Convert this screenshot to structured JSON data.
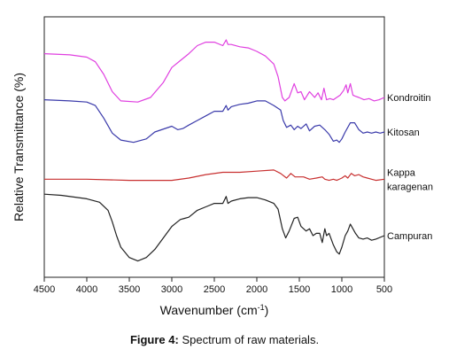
{
  "chart_data": {
    "type": "line",
    "xlabel": "Wavenumber (cm",
    "xlabel_sup": "-1",
    "xlabel_end": ")",
    "ylabel": "Relative Transmittance (%)",
    "xlim": [
      4500,
      500
    ],
    "x_reversed": true,
    "ylim": [
      0,
      100
    ],
    "y_ticks_shown": false,
    "grid": false,
    "x_ticks": [
      4500,
      4000,
      3500,
      3000,
      2500,
      2000,
      1500,
      1000,
      500
    ],
    "x_tick_labels": [
      "4500",
      "4000",
      "3500",
      "3000",
      "2500",
      "2000",
      "1500",
      "1000",
      "500"
    ],
    "series": [
      {
        "name": "Kondroitin",
        "label_lines": [
          "Kondroitin"
        ],
        "color": "#e040e0",
        "points": [
          [
            4500,
            89
          ],
          [
            4200,
            88.5
          ],
          [
            4000,
            87.5
          ],
          [
            3900,
            85.5
          ],
          [
            3800,
            80
          ],
          [
            3700,
            72.5
          ],
          [
            3600,
            68.5
          ],
          [
            3400,
            68
          ],
          [
            3250,
            70
          ],
          [
            3100,
            76.5
          ],
          [
            3000,
            83
          ],
          [
            2900,
            86
          ],
          [
            2800,
            89
          ],
          [
            2700,
            92.5
          ],
          [
            2600,
            94
          ],
          [
            2500,
            94
          ],
          [
            2400,
            92.5
          ],
          [
            2360,
            95
          ],
          [
            2340,
            93
          ],
          [
            2300,
            93
          ],
          [
            2200,
            92
          ],
          [
            2100,
            91.5
          ],
          [
            2000,
            90
          ],
          [
            1900,
            88
          ],
          [
            1800,
            84.5
          ],
          [
            1750,
            79
          ],
          [
            1700,
            70
          ],
          [
            1670,
            68.5
          ],
          [
            1620,
            70
          ],
          [
            1560,
            76
          ],
          [
            1520,
            72
          ],
          [
            1480,
            72.5
          ],
          [
            1440,
            69
          ],
          [
            1380,
            72.5
          ],
          [
            1320,
            70
          ],
          [
            1280,
            72
          ],
          [
            1240,
            69
          ],
          [
            1210,
            74
          ],
          [
            1180,
            69
          ],
          [
            1140,
            69.5
          ],
          [
            1100,
            69
          ],
          [
            1060,
            70
          ],
          [
            1020,
            71
          ],
          [
            980,
            73
          ],
          [
            950,
            75.5
          ],
          [
            930,
            72
          ],
          [
            900,
            76
          ],
          [
            870,
            71
          ],
          [
            840,
            70.5
          ],
          [
            800,
            70
          ],
          [
            740,
            69
          ],
          [
            680,
            69.5
          ],
          [
            620,
            68.5
          ],
          [
            560,
            69
          ],
          [
            500,
            70
          ]
        ]
      },
      {
        "name": "Kitosan",
        "label_lines": [
          "Kitosan"
        ],
        "color": "#3a3aaa",
        "points": [
          [
            4500,
            69
          ],
          [
            4200,
            68.5
          ],
          [
            4000,
            68
          ],
          [
            3900,
            66.5
          ],
          [
            3800,
            61
          ],
          [
            3700,
            54.5
          ],
          [
            3600,
            51.5
          ],
          [
            3450,
            50.5
          ],
          [
            3300,
            52
          ],
          [
            3200,
            55
          ],
          [
            3000,
            57.5
          ],
          [
            2930,
            56
          ],
          [
            2870,
            56.5
          ],
          [
            2800,
            58
          ],
          [
            2700,
            60
          ],
          [
            2600,
            62
          ],
          [
            2500,
            64
          ],
          [
            2400,
            64
          ],
          [
            2360,
            66.5
          ],
          [
            2340,
            64.5
          ],
          [
            2300,
            66
          ],
          [
            2200,
            67
          ],
          [
            2100,
            67.5
          ],
          [
            2000,
            68.5
          ],
          [
            1900,
            68.5
          ],
          [
            1800,
            66.5
          ],
          [
            1720,
            64.5
          ],
          [
            1690,
            60
          ],
          [
            1650,
            57
          ],
          [
            1600,
            58
          ],
          [
            1560,
            56
          ],
          [
            1520,
            57.5
          ],
          [
            1480,
            56.5
          ],
          [
            1420,
            58.5
          ],
          [
            1380,
            55.5
          ],
          [
            1320,
            57.5
          ],
          [
            1260,
            58
          ],
          [
            1200,
            56
          ],
          [
            1150,
            54
          ],
          [
            1100,
            51
          ],
          [
            1060,
            51.5
          ],
          [
            1030,
            50.5
          ],
          [
            1000,
            52
          ],
          [
            960,
            55
          ],
          [
            900,
            59
          ],
          [
            850,
            59
          ],
          [
            800,
            56
          ],
          [
            750,
            54.5
          ],
          [
            700,
            55
          ],
          [
            650,
            54.5
          ],
          [
            600,
            55
          ],
          [
            550,
            54.5
          ],
          [
            500,
            55
          ]
        ]
      },
      {
        "name": "Kappa karagenan",
        "label_lines": [
          "Kappa",
          "karagenan"
        ],
        "color": "#c83030",
        "points": [
          [
            4500,
            34.5
          ],
          [
            4000,
            34.5
          ],
          [
            3500,
            34
          ],
          [
            3000,
            34
          ],
          [
            2800,
            35
          ],
          [
            2600,
            36.5
          ],
          [
            2400,
            37.5
          ],
          [
            2200,
            37.5
          ],
          [
            2000,
            38
          ],
          [
            1800,
            38.5
          ],
          [
            1720,
            37
          ],
          [
            1650,
            35
          ],
          [
            1600,
            37
          ],
          [
            1550,
            35.5
          ],
          [
            1450,
            35.5
          ],
          [
            1380,
            34.5
          ],
          [
            1300,
            35
          ],
          [
            1230,
            35.5
          ],
          [
            1200,
            34.5
          ],
          [
            1150,
            34
          ],
          [
            1100,
            34.5
          ],
          [
            1060,
            34
          ],
          [
            1000,
            35
          ],
          [
            960,
            36
          ],
          [
            930,
            35
          ],
          [
            890,
            37
          ],
          [
            850,
            36
          ],
          [
            800,
            36.5
          ],
          [
            750,
            35.5
          ],
          [
            700,
            35
          ],
          [
            650,
            34.5
          ],
          [
            600,
            34
          ],
          [
            500,
            34.5
          ]
        ]
      },
      {
        "name": "Campuran",
        "label_lines": [
          "Campuran"
        ],
        "color": "#222222",
        "points": [
          [
            4500,
            28
          ],
          [
            4300,
            27.5
          ],
          [
            4000,
            26
          ],
          [
            3850,
            24.5
          ],
          [
            3750,
            21
          ],
          [
            3700,
            16
          ],
          [
            3650,
            10
          ],
          [
            3600,
            5
          ],
          [
            3500,
            0.5
          ],
          [
            3400,
            -1
          ],
          [
            3300,
            0.5
          ],
          [
            3200,
            4
          ],
          [
            3100,
            9
          ],
          [
            3000,
            14
          ],
          [
            2950,
            15.5
          ],
          [
            2900,
            17
          ],
          [
            2850,
            17.5
          ],
          [
            2800,
            18
          ],
          [
            2700,
            21
          ],
          [
            2600,
            22.5
          ],
          [
            2500,
            24
          ],
          [
            2400,
            24
          ],
          [
            2360,
            27
          ],
          [
            2340,
            24
          ],
          [
            2300,
            25
          ],
          [
            2200,
            26
          ],
          [
            2100,
            26.5
          ],
          [
            2000,
            26.5
          ],
          [
            1900,
            25.5
          ],
          [
            1800,
            24
          ],
          [
            1750,
            21.5
          ],
          [
            1700,
            13
          ],
          [
            1660,
            9
          ],
          [
            1620,
            12
          ],
          [
            1560,
            17.5
          ],
          [
            1520,
            18
          ],
          [
            1480,
            14
          ],
          [
            1420,
            12
          ],
          [
            1380,
            13
          ],
          [
            1340,
            10
          ],
          [
            1300,
            11
          ],
          [
            1260,
            11
          ],
          [
            1230,
            7
          ],
          [
            1200,
            13
          ],
          [
            1180,
            10
          ],
          [
            1150,
            11
          ],
          [
            1100,
            6
          ],
          [
            1060,
            3
          ],
          [
            1030,
            2
          ],
          [
            1000,
            5
          ],
          [
            960,
            10
          ],
          [
            930,
            12
          ],
          [
            900,
            15
          ],
          [
            870,
            13
          ],
          [
            840,
            11
          ],
          [
            800,
            9
          ],
          [
            750,
            8.5
          ],
          [
            700,
            9
          ],
          [
            650,
            8
          ],
          [
            600,
            8.5
          ],
          [
            500,
            10
          ]
        ]
      }
    ]
  },
  "caption": {
    "label": "Figure 4:",
    "text": " Spectrum of raw materials."
  }
}
